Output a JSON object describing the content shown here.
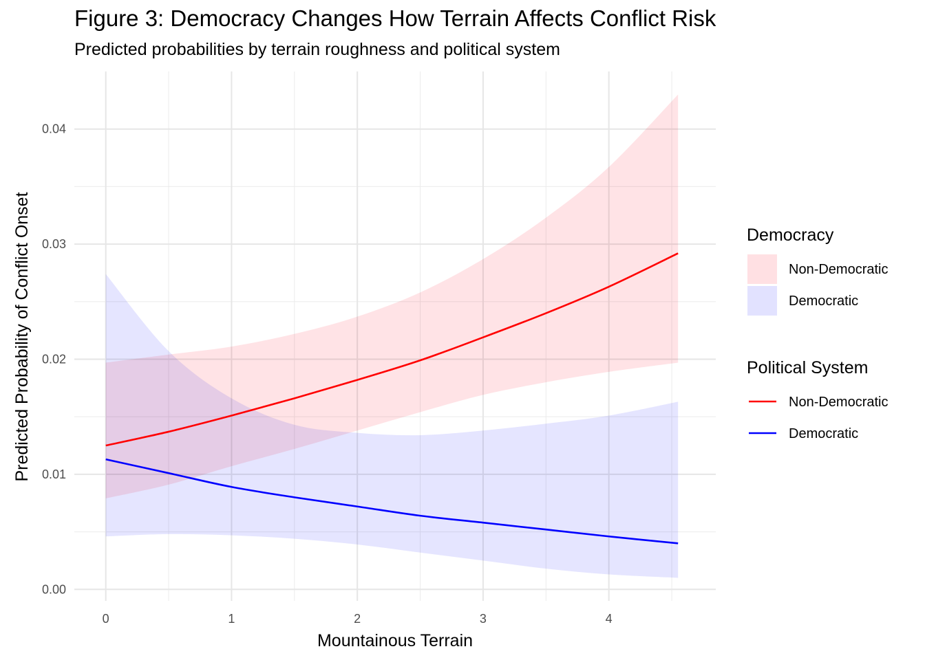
{
  "chart_data": {
    "type": "line",
    "title": "Figure 3: Democracy Changes How Terrain Affects Conflict Risk",
    "subtitle": "Predicted probabilities by terrain roughness and political system",
    "xlabel": "Mountainous Terrain",
    "ylabel": "Predicted Probability of Conflict Onset",
    "xlim": [
      -0.25,
      4.85
    ],
    "ylim": [
      -0.001,
      0.045
    ],
    "x_ticks": [
      0,
      1,
      2,
      3,
      4
    ],
    "x_tick_labels": [
      "0",
      "1",
      "2",
      "3",
      "4"
    ],
    "y_ticks": [
      0,
      0.01,
      0.02,
      0.03,
      0.04
    ],
    "y_tick_labels": [
      "0.00",
      "0.01",
      "0.02",
      "0.03",
      "0.04"
    ],
    "grid": true,
    "legend_position": "right",
    "x": [
      0,
      0.5,
      1,
      1.5,
      2,
      2.5,
      3,
      3.5,
      4,
      4.55
    ],
    "series": [
      {
        "name": "Non-Democratic",
        "line_color": "#ff0000",
        "fill_color": "#ffe0e3",
        "values": [
          0.0125,
          0.0137,
          0.0151,
          0.0166,
          0.0182,
          0.0199,
          0.0219,
          0.024,
          0.0263,
          0.0292
        ],
        "lower": [
          0.0079,
          0.0091,
          0.0107,
          0.0122,
          0.0138,
          0.0154,
          0.0169,
          0.018,
          0.0189,
          0.0197
        ],
        "upper": [
          0.0197,
          0.0204,
          0.0211,
          0.0222,
          0.0237,
          0.0258,
          0.0287,
          0.0323,
          0.0367,
          0.043
        ]
      },
      {
        "name": "Democratic",
        "line_color": "#0000ff",
        "fill_color": "#e2e2ff",
        "values": [
          0.0113,
          0.0101,
          0.0089,
          0.008,
          0.0072,
          0.0064,
          0.0058,
          0.0052,
          0.0046,
          0.004
        ],
        "lower": [
          0.0046,
          0.0048,
          0.0047,
          0.0044,
          0.0039,
          0.0032,
          0.0025,
          0.0018,
          0.0013,
          0.001
        ],
        "upper": [
          0.0274,
          0.0207,
          0.0166,
          0.0143,
          0.0136,
          0.0134,
          0.0138,
          0.0144,
          0.0151,
          0.0163
        ]
      }
    ],
    "legends": [
      {
        "title": "Democracy",
        "kind": "fill",
        "items": [
          "Non-Democratic",
          "Democratic"
        ]
      },
      {
        "title": "Political System",
        "kind": "line",
        "items": [
          "Non-Democratic",
          "Democratic"
        ]
      }
    ]
  }
}
